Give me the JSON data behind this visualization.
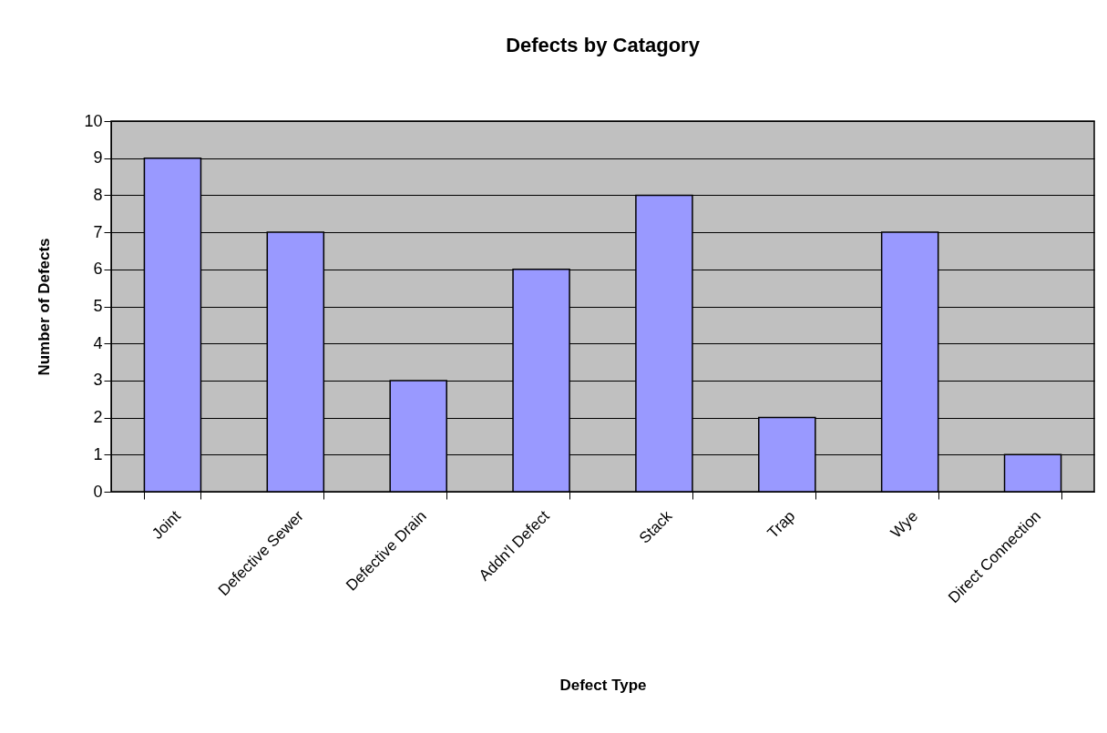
{
  "chart_data": {
    "type": "bar",
    "title": "Defects by Catagory",
    "xlabel": "Defect Type",
    "ylabel": "Number of Defects",
    "categories": [
      "Joint",
      "Defective Sewer",
      "Defective Drain",
      "Addn'l Defect",
      "Stack",
      "Trap",
      "Wye",
      "Direct Connection"
    ],
    "values": [
      9,
      7,
      3,
      6,
      8,
      2,
      7,
      1
    ],
    "color": "#9999ff",
    "ylim": [
      0,
      10
    ],
    "yticks": [
      0,
      1,
      2,
      3,
      4,
      5,
      6,
      7,
      8,
      9,
      10
    ],
    "grid": "y"
  }
}
